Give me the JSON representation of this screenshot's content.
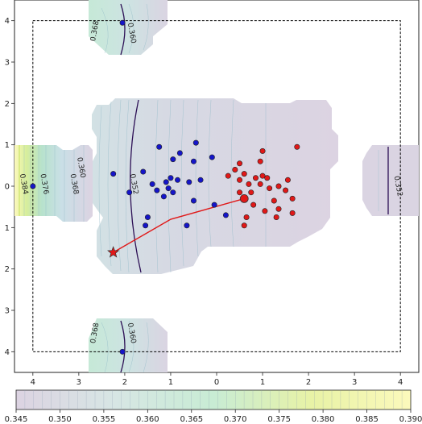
{
  "chart_data": {
    "type": "scatter",
    "title": "",
    "xlabel": "",
    "ylabel": "",
    "xlim": [
      4.4,
      -4.4
    ],
    "ylim": [
      -4.5,
      4.5
    ],
    "x_ticks": [
      {
        "value": 4,
        "label": "4"
      },
      {
        "value": 3,
        "label": "3"
      },
      {
        "value": 2,
        "label": "2"
      },
      {
        "value": 1,
        "label": "1"
      },
      {
        "value": 0,
        "label": "0"
      },
      {
        "value": -1,
        "label": "1"
      },
      {
        "value": -2,
        "label": "2"
      },
      {
        "value": -3,
        "label": "3"
      },
      {
        "value": -4,
        "label": "4"
      }
    ],
    "y_ticks": [
      {
        "value": 4,
        "label": "4"
      },
      {
        "value": 3,
        "label": "3"
      },
      {
        "value": 2,
        "label": "2"
      },
      {
        "value": 1,
        "label": "1"
      },
      {
        "value": 0,
        "label": "0"
      },
      {
        "value": -1,
        "label": "1"
      },
      {
        "value": -2,
        "label": "2"
      },
      {
        "value": -3,
        "label": "3"
      },
      {
        "value": -4,
        "label": "4"
      }
    ],
    "boundary_box": {
      "x": [
        4.0,
        -4.0
      ],
      "y": [
        -4.0,
        4.0
      ]
    },
    "colorbar": {
      "min": 0.345,
      "max": 0.39,
      "ticks": [
        "0.345",
        "0.350",
        "0.355",
        "0.360",
        "0.365",
        "0.370",
        "0.375",
        "0.380",
        "0.385",
        "0.390"
      ],
      "colors": [
        "#dcd3e2",
        "#d7e6e4",
        "#c8ecd4",
        "#e8f2a6",
        "#fcf9bc"
      ]
    },
    "contour_labels": [
      {
        "text": "0.368",
        "x": 2.65,
        "y": 3.75,
        "rotate": -80
      },
      {
        "text": "0.360",
        "x": 1.85,
        "y": 3.7,
        "rotate": 80
      },
      {
        "text": "0.384",
        "x": 4.2,
        "y": 0.05,
        "rotate": 80
      },
      {
        "text": "0.376",
        "x": 3.75,
        "y": 0.05,
        "rotate": 80
      },
      {
        "text": "0.368",
        "x": 3.1,
        "y": 0.05,
        "rotate": 80
      },
      {
        "text": "0.360",
        "x": 2.95,
        "y": 0.45,
        "rotate": 80
      },
      {
        "text": "0.352",
        "x": 1.8,
        "y": 0.05,
        "rotate": 80
      },
      {
        "text": "0.352",
        "x": -3.95,
        "y": 0.0,
        "rotate": 80
      },
      {
        "text": "0.368",
        "x": 2.65,
        "y": -3.55,
        "rotate": -80
      },
      {
        "text": "0.360",
        "x": 1.85,
        "y": -3.55,
        "rotate": 80
      }
    ],
    "series": [
      {
        "color": "#1515c8",
        "points": [
          [
            0.45,
            1.05
          ],
          [
            1.25,
            0.95
          ],
          [
            0.8,
            0.8
          ],
          [
            0.1,
            0.7
          ],
          [
            0.95,
            0.65
          ],
          [
            0.5,
            0.6
          ],
          [
            1.6,
            0.35
          ],
          [
            2.25,
            0.3
          ],
          [
            1.0,
            0.2
          ],
          [
            0.85,
            0.15
          ],
          [
            1.1,
            0.1
          ],
          [
            0.6,
            0.1
          ],
          [
            0.35,
            0.15
          ],
          [
            1.05,
            -0.05
          ],
          [
            1.4,
            0.05
          ],
          [
            1.3,
            -0.1
          ],
          [
            0.95,
            -0.15
          ],
          [
            1.15,
            -0.25
          ],
          [
            0.5,
            -0.35
          ],
          [
            1.9,
            -0.15
          ],
          [
            0.05,
            -0.45
          ],
          [
            -0.2,
            -0.7
          ],
          [
            1.5,
            -0.75
          ],
          [
            1.55,
            -0.95
          ],
          [
            0.65,
            -0.95
          ],
          [
            2.05,
            3.95
          ],
          [
            4.0,
            0.0
          ],
          [
            2.05,
            -4.0
          ]
        ]
      },
      {
        "color": "#e01818",
        "points": [
          [
            -1.75,
            0.95
          ],
          [
            -1.0,
            0.85
          ],
          [
            -0.5,
            0.55
          ],
          [
            -0.95,
            0.6
          ],
          [
            -0.4,
            0.4
          ],
          [
            -0.6,
            0.3
          ],
          [
            -0.25,
            0.25
          ],
          [
            -0.5,
            0.15
          ],
          [
            -1.0,
            0.25
          ],
          [
            -1.1,
            0.2
          ],
          [
            -1.55,
            0.15
          ],
          [
            -0.85,
            0.2
          ],
          [
            -0.7,
            0.05
          ],
          [
            -1.35,
            0.0
          ],
          [
            -0.95,
            0.05
          ],
          [
            -1.15,
            -0.05
          ],
          [
            -0.75,
            -0.15
          ],
          [
            -1.5,
            -0.1
          ],
          [
            -1.65,
            -0.3
          ],
          [
            -1.25,
            -0.35
          ],
          [
            -0.5,
            -0.15
          ],
          [
            -0.8,
            -0.45
          ],
          [
            -1.35,
            -0.55
          ],
          [
            -1.05,
            -0.6
          ],
          [
            -1.65,
            -0.65
          ],
          [
            -0.65,
            -0.75
          ],
          [
            -1.3,
            -0.75
          ],
          [
            -0.6,
            -0.95
          ]
        ]
      }
    ],
    "highlight_point": {
      "x": -0.6,
      "y": -0.3,
      "color": "#e01818"
    },
    "star": {
      "x": 2.25,
      "y": -1.6,
      "color": "#e01818"
    },
    "path": [
      [
        2.25,
        -1.6
      ],
      [
        1.0,
        -0.8
      ],
      [
        -0.6,
        -0.3
      ]
    ]
  }
}
